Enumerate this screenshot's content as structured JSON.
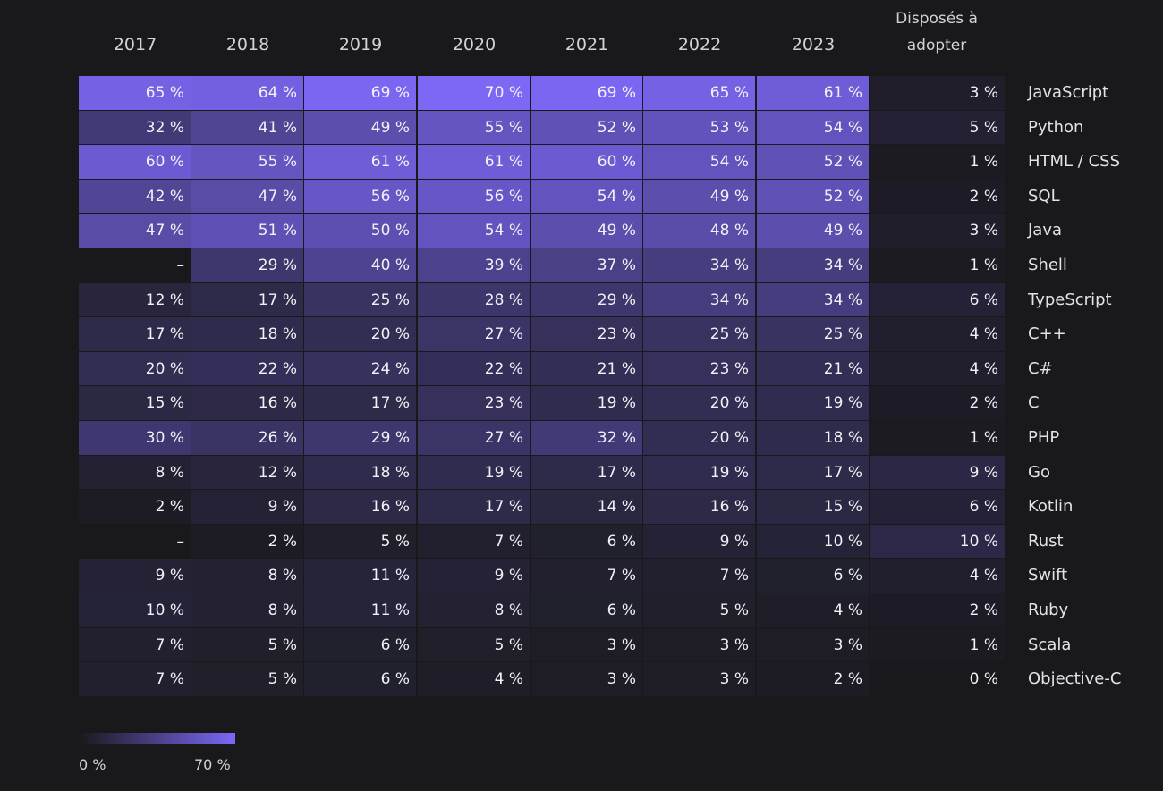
{
  "chart_data": {
    "type": "heatmap",
    "columns": [
      "2017",
      "2018",
      "2019",
      "2020",
      "2021",
      "2022",
      "2023"
    ],
    "extra_column": "Disposés à adopter",
    "extra_column_lines": [
      "Disposés à",
      "adopter"
    ],
    "rows": [
      {
        "label": "JavaScript",
        "values": [
          "65 %",
          "64 %",
          "69 %",
          "70 %",
          "69 %",
          "65 %",
          "61 %"
        ],
        "adopt": "3 %"
      },
      {
        "label": "Python",
        "values": [
          "32 %",
          "41 %",
          "49 %",
          "55 %",
          "52 %",
          "53 %",
          "54 %"
        ],
        "adopt": "5 %"
      },
      {
        "label": "HTML / CSS",
        "values": [
          "60 %",
          "55 %",
          "61 %",
          "61 %",
          "60 %",
          "54 %",
          "52 %"
        ],
        "adopt": "1 %"
      },
      {
        "label": "SQL",
        "values": [
          "42 %",
          "47 %",
          "56 %",
          "56 %",
          "54 %",
          "49 %",
          "52 %"
        ],
        "adopt": "2 %"
      },
      {
        "label": "Java",
        "values": [
          "47 %",
          "51 %",
          "50 %",
          "54 %",
          "49 %",
          "48 %",
          "49 %"
        ],
        "adopt": "3 %"
      },
      {
        "label": "Shell",
        "values": [
          "–",
          "29 %",
          "40 %",
          "39 %",
          "37 %",
          "34 %",
          "34 %"
        ],
        "adopt": "1 %"
      },
      {
        "label": "TypeScript",
        "values": [
          "12 %",
          "17 %",
          "25 %",
          "28 %",
          "29 %",
          "34 %",
          "34 %"
        ],
        "adopt": "6 %"
      },
      {
        "label": "C++",
        "values": [
          "17 %",
          "18 %",
          "20 %",
          "27 %",
          "23 %",
          "25 %",
          "25 %"
        ],
        "adopt": "4 %"
      },
      {
        "label": "C#",
        "values": [
          "20 %",
          "22 %",
          "24 %",
          "22 %",
          "21 %",
          "23 %",
          "21 %"
        ],
        "adopt": "4 %"
      },
      {
        "label": "C",
        "values": [
          "15 %",
          "16 %",
          "17 %",
          "23 %",
          "19 %",
          "20 %",
          "19 %"
        ],
        "adopt": "2 %"
      },
      {
        "label": "PHP",
        "values": [
          "30 %",
          "26 %",
          "29 %",
          "27 %",
          "32 %",
          "20 %",
          "18 %"
        ],
        "adopt": "1 %"
      },
      {
        "label": "Go",
        "values": [
          "8 %",
          "12 %",
          "18 %",
          "19 %",
          "17 %",
          "19 %",
          "17 %"
        ],
        "adopt": "9 %"
      },
      {
        "label": "Kotlin",
        "values": [
          "2 %",
          "9 %",
          "16 %",
          "17 %",
          "14 %",
          "16 %",
          "15 %"
        ],
        "adopt": "6 %"
      },
      {
        "label": "Rust",
        "values": [
          "–",
          "2 %",
          "5 %",
          "7 %",
          "6 %",
          "9 %",
          "10 %"
        ],
        "adopt": "10 %"
      },
      {
        "label": "Swift",
        "values": [
          "9 %",
          "8 %",
          "11 %",
          "9 %",
          "7 %",
          "7 %",
          "6 %"
        ],
        "adopt": "4 %"
      },
      {
        "label": "Ruby",
        "values": [
          "10 %",
          "8 %",
          "11 %",
          "8 %",
          "6 %",
          "5 %",
          "4 %"
        ],
        "adopt": "2 %"
      },
      {
        "label": "Scala",
        "values": [
          "7 %",
          "5 %",
          "6 %",
          "5 %",
          "3 %",
          "3 %",
          "3 %"
        ],
        "adopt": "1 %"
      },
      {
        "label": "Objective-C",
        "values": [
          "7 %",
          "5 %",
          "6 %",
          "4 %",
          "3 %",
          "3 %",
          "2 %"
        ],
        "adopt": "0 %"
      }
    ],
    "scale": {
      "min": 0,
      "max": 70,
      "min_label": "0 %",
      "max_label": "70 %"
    },
    "colors": {
      "background": "#19191c",
      "low": "#19191c",
      "high": "#7b68f5"
    }
  }
}
